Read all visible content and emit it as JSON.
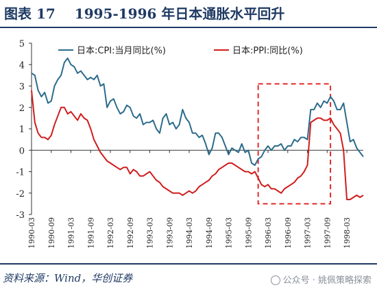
{
  "header": {
    "figure_label": "图表 17",
    "title": "1995-1996 年日本通胀水平回升"
  },
  "footer": {
    "source": "资料来源：Wind，华创证券",
    "watermark": "公众号 · 姚佩策略探索"
  },
  "chart_data": {
    "type": "line",
    "title": "1995-1996 年日本通胀水平回升",
    "ylim": [
      -3,
      5
    ],
    "yticks": [
      -3,
      -2,
      -1,
      0,
      1,
      2,
      3,
      4,
      5
    ],
    "x_start": "1990-03",
    "x_end": "1998-08",
    "xtick_labels": [
      "1990-03",
      "1990-09",
      "1991-03",
      "1991-09",
      "1992-03",
      "1992-09",
      "1993-03",
      "1993-09",
      "1994-03",
      "1994-09",
      "1995-03",
      "1995-09",
      "1996-03",
      "1996-09",
      "1997-03",
      "1997-09",
      "1998-03"
    ],
    "grid": false,
    "legend_position": "top",
    "highlight_box": {
      "x_from": "1995-12",
      "x_to": "1997-10",
      "y_from": -2.5,
      "y_to": 3.1,
      "color": "#e02a2a",
      "style": "dashed"
    },
    "series": [
      {
        "name": "日本:CPI:当月同比(%)",
        "color": "#2b6b8c",
        "points": [
          [
            "1990-03",
            3.6
          ],
          [
            "1990-04",
            3.5
          ],
          [
            "1990-05",
            2.8
          ],
          [
            "1990-06",
            2.5
          ],
          [
            "1990-07",
            2.7
          ],
          [
            "1990-08",
            2.2
          ],
          [
            "1990-09",
            2.3
          ],
          [
            "1990-10",
            3.0
          ],
          [
            "1990-11",
            3.3
          ],
          [
            "1990-12",
            3.5
          ],
          [
            "1991-01",
            4.1
          ],
          [
            "1991-02",
            4.3
          ],
          [
            "1991-03",
            4.0
          ],
          [
            "1991-04",
            3.9
          ],
          [
            "1991-05",
            3.6
          ],
          [
            "1991-06",
            3.7
          ],
          [
            "1991-07",
            3.5
          ],
          [
            "1991-08",
            3.3
          ],
          [
            "1991-09",
            3.4
          ],
          [
            "1991-10",
            3.3
          ],
          [
            "1991-11",
            3.5
          ],
          [
            "1991-12",
            3.0
          ],
          [
            "1992-01",
            3.1
          ],
          [
            "1992-02",
            2.0
          ],
          [
            "1992-03",
            2.3
          ],
          [
            "1992-04",
            2.4
          ],
          [
            "1992-05",
            2.0
          ],
          [
            "1992-06",
            1.7
          ],
          [
            "1992-07",
            1.8
          ],
          [
            "1992-08",
            2.1
          ],
          [
            "1992-09",
            2.0
          ],
          [
            "1992-10",
            1.6
          ],
          [
            "1992-11",
            1.5
          ],
          [
            "1992-12",
            1.7
          ],
          [
            "1993-01",
            1.2
          ],
          [
            "1993-02",
            1.3
          ],
          [
            "1993-03",
            1.3
          ],
          [
            "1993-04",
            1.4
          ],
          [
            "1993-05",
            1.0
          ],
          [
            "1993-06",
            0.8
          ],
          [
            "1993-07",
            1.5
          ],
          [
            "1993-08",
            1.7
          ],
          [
            "1993-09",
            1.2
          ],
          [
            "1993-10",
            1.3
          ],
          [
            "1993-11",
            1.0
          ],
          [
            "1993-12",
            1.2
          ],
          [
            "1994-01",
            1.9
          ],
          [
            "1994-02",
            1.5
          ],
          [
            "1994-03",
            1.3
          ],
          [
            "1994-04",
            0.8
          ],
          [
            "1994-05",
            0.8
          ],
          [
            "1994-06",
            0.6
          ],
          [
            "1994-07",
            0.7
          ],
          [
            "1994-08",
            0.3
          ],
          [
            "1994-09",
            -0.2
          ],
          [
            "1994-10",
            0.1
          ],
          [
            "1994-11",
            0.8
          ],
          [
            "1994-12",
            0.8
          ],
          [
            "1995-01",
            0.6
          ],
          [
            "1995-02",
            0.2
          ],
          [
            "1995-03",
            -0.2
          ],
          [
            "1995-04",
            0.1
          ],
          [
            "1995-05",
            0.0
          ],
          [
            "1995-06",
            -0.1
          ],
          [
            "1995-07",
            0.3
          ],
          [
            "1995-08",
            -0.1
          ],
          [
            "1995-09",
            0.0
          ],
          [
            "1995-10",
            -0.6
          ],
          [
            "1995-11",
            -0.7
          ],
          [
            "1995-12",
            -0.4
          ],
          [
            "1996-01",
            -0.3
          ],
          [
            "1996-02",
            0.0
          ],
          [
            "1996-03",
            0.2
          ],
          [
            "1996-04",
            0.0
          ],
          [
            "1996-05",
            0.2
          ],
          [
            "1996-06",
            0.2
          ],
          [
            "1996-07",
            0.3
          ],
          [
            "1996-08",
            0.0
          ],
          [
            "1996-09",
            0.2
          ],
          [
            "1996-10",
            0.2
          ],
          [
            "1996-11",
            0.5
          ],
          [
            "1996-12",
            0.4
          ],
          [
            "1997-01",
            0.6
          ],
          [
            "1997-02",
            0.6
          ],
          [
            "1997-03",
            0.5
          ],
          [
            "1997-04",
            1.9
          ],
          [
            "1997-05",
            1.9
          ],
          [
            "1997-06",
            2.2
          ],
          [
            "1997-07",
            2.0
          ],
          [
            "1997-08",
            2.3
          ],
          [
            "1997-09",
            2.2
          ],
          [
            "1997-10",
            2.5
          ],
          [
            "1997-11",
            2.3
          ],
          [
            "1997-12",
            1.9
          ],
          [
            "1998-01",
            1.9
          ],
          [
            "1998-02",
            2.2
          ],
          [
            "1998-03",
            1.3
          ],
          [
            "1998-04",
            0.4
          ],
          [
            "1998-05",
            0.5
          ],
          [
            "1998-06",
            0.1
          ],
          [
            "1998-07",
            -0.1
          ],
          [
            "1998-08",
            -0.3
          ]
        ]
      },
      {
        "name": "日本:PPI:同比(%)",
        "color": "#d01c1c",
        "points": [
          [
            "1990-03",
            2.8
          ],
          [
            "1990-04",
            1.3
          ],
          [
            "1990-05",
            0.8
          ],
          [
            "1990-06",
            0.6
          ],
          [
            "1990-07",
            0.6
          ],
          [
            "1990-08",
            0.5
          ],
          [
            "1990-09",
            0.7
          ],
          [
            "1990-10",
            1.2
          ],
          [
            "1990-11",
            1.6
          ],
          [
            "1990-12",
            2.0
          ],
          [
            "1991-01",
            2.0
          ],
          [
            "1991-02",
            1.7
          ],
          [
            "1991-03",
            1.8
          ],
          [
            "1991-04",
            1.6
          ],
          [
            "1991-05",
            1.4
          ],
          [
            "1991-06",
            1.7
          ],
          [
            "1991-07",
            1.5
          ],
          [
            "1991-08",
            1.4
          ],
          [
            "1991-09",
            1.0
          ],
          [
            "1991-10",
            0.5
          ],
          [
            "1991-11",
            0.2
          ],
          [
            "1991-12",
            -0.1
          ],
          [
            "1992-01",
            -0.3
          ],
          [
            "1992-02",
            -0.5
          ],
          [
            "1992-03",
            -0.6
          ],
          [
            "1992-04",
            -0.7
          ],
          [
            "1992-05",
            -0.8
          ],
          [
            "1992-06",
            -0.9
          ],
          [
            "1992-07",
            -0.8
          ],
          [
            "1992-08",
            -0.8
          ],
          [
            "1992-09",
            -1.1
          ],
          [
            "1992-10",
            -0.9
          ],
          [
            "1992-11",
            -1.0
          ],
          [
            "1992-12",
            -1.2
          ],
          [
            "1993-01",
            -1.2
          ],
          [
            "1993-02",
            -1.1
          ],
          [
            "1993-03",
            -1.0
          ],
          [
            "1993-04",
            -1.2
          ],
          [
            "1993-05",
            -1.4
          ],
          [
            "1993-06",
            -1.5
          ],
          [
            "1993-07",
            -1.7
          ],
          [
            "1993-08",
            -1.8
          ],
          [
            "1993-09",
            -1.9
          ],
          [
            "1993-10",
            -2.0
          ],
          [
            "1993-11",
            -2.0
          ],
          [
            "1993-12",
            -2.0
          ],
          [
            "1994-01",
            -2.1
          ],
          [
            "1994-02",
            -2.0
          ],
          [
            "1994-03",
            -1.9
          ],
          [
            "1994-04",
            -2.0
          ],
          [
            "1994-05",
            -1.9
          ],
          [
            "1994-06",
            -1.7
          ],
          [
            "1994-07",
            -1.6
          ],
          [
            "1994-08",
            -1.5
          ],
          [
            "1994-09",
            -1.4
          ],
          [
            "1994-10",
            -1.2
          ],
          [
            "1994-11",
            -1.1
          ],
          [
            "1994-12",
            -0.9
          ],
          [
            "1995-01",
            -0.8
          ],
          [
            "1995-02",
            -0.7
          ],
          [
            "1995-03",
            -0.6
          ],
          [
            "1995-04",
            -0.6
          ],
          [
            "1995-05",
            -0.7
          ],
          [
            "1995-06",
            -0.8
          ],
          [
            "1995-07",
            -0.9
          ],
          [
            "1995-08",
            -1.0
          ],
          [
            "1995-09",
            -1.0
          ],
          [
            "1995-10",
            -1.1
          ],
          [
            "1995-11",
            -1.0
          ],
          [
            "1995-12",
            -1.3
          ],
          [
            "1996-01",
            -1.6
          ],
          [
            "1996-02",
            -1.7
          ],
          [
            "1996-03",
            -1.6
          ],
          [
            "1996-04",
            -1.8
          ],
          [
            "1996-05",
            -1.8
          ],
          [
            "1996-06",
            -1.9
          ],
          [
            "1996-07",
            -2.0
          ],
          [
            "1996-08",
            -1.8
          ],
          [
            "1996-09",
            -1.7
          ],
          [
            "1996-10",
            -1.6
          ],
          [
            "1996-11",
            -1.5
          ],
          [
            "1996-12",
            -1.3
          ],
          [
            "1997-01",
            -1.2
          ],
          [
            "1997-02",
            -1.0
          ],
          [
            "1997-03",
            -0.7
          ],
          [
            "1997-04",
            1.3
          ],
          [
            "1997-05",
            1.4
          ],
          [
            "1997-06",
            1.5
          ],
          [
            "1997-07",
            1.5
          ],
          [
            "1997-08",
            1.4
          ],
          [
            "1997-09",
            1.4
          ],
          [
            "1997-10",
            1.5
          ],
          [
            "1997-11",
            1.2
          ],
          [
            "1997-12",
            1.0
          ],
          [
            "1998-01",
            0.8
          ],
          [
            "1998-02",
            0.0
          ],
          [
            "1998-03",
            -2.3
          ],
          [
            "1998-04",
            -2.3
          ],
          [
            "1998-05",
            -2.2
          ],
          [
            "1998-06",
            -2.1
          ],
          [
            "1998-07",
            -2.2
          ],
          [
            "1998-08",
            -2.1
          ]
        ]
      }
    ]
  }
}
